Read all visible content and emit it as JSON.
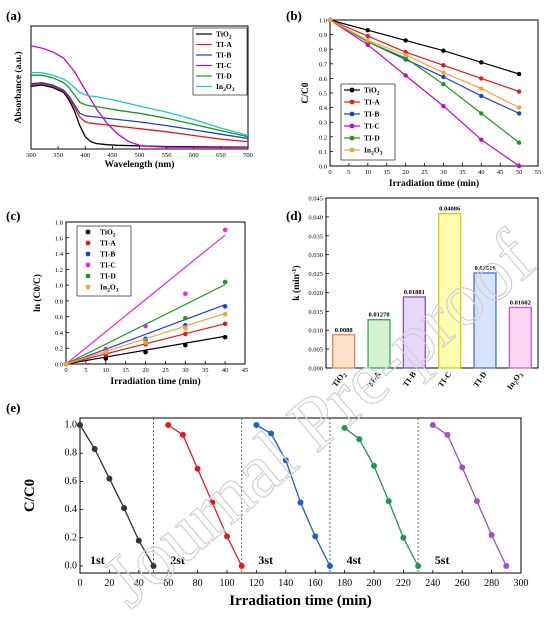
{
  "watermark": "Journal Pre-proof",
  "chart_data": [
    {
      "panel": "(a)",
      "type": "line",
      "xlabel": "Wavelength (nm)",
      "ylabel": "Absorbance (a.u.)",
      "xlim": [
        300,
        700
      ],
      "ylim": [
        0,
        1
      ],
      "xticks": [
        300,
        350,
        400,
        450,
        500,
        550,
        600,
        650,
        700
      ],
      "xtick_labels": [
        "300",
        "350",
        "400",
        "450",
        "500",
        "550",
        "600",
        "650",
        "700"
      ],
      "legend": "top-right",
      "series": [
        {
          "name": "TiO2",
          "color": "#000000",
          "x": [
            300,
            320,
            340,
            360,
            370,
            380,
            390,
            400,
            410,
            420,
            440,
            460,
            500,
            550,
            600,
            650,
            700
          ],
          "y": [
            0.51,
            0.52,
            0.5,
            0.46,
            0.4,
            0.31,
            0.19,
            0.1,
            0.06,
            0.045,
            0.035,
            0.03,
            0.025,
            0.02,
            0.018,
            0.016,
            0.015
          ]
        },
        {
          "name": "TI-A",
          "color": "#e31a1c",
          "x": [
            300,
            320,
            340,
            360,
            370,
            380,
            390,
            400,
            410,
            420,
            440,
            460,
            500,
            550,
            600,
            650,
            700
          ],
          "y": [
            0.52,
            0.53,
            0.51,
            0.47,
            0.42,
            0.34,
            0.26,
            0.22,
            0.21,
            0.205,
            0.195,
            0.185,
            0.165,
            0.14,
            0.11,
            0.08,
            0.06
          ]
        },
        {
          "name": "TI-B",
          "color": "#1f3fd1",
          "x": [
            300,
            320,
            340,
            360,
            370,
            380,
            390,
            400,
            410,
            420,
            440,
            460,
            500,
            550,
            600,
            650,
            700
          ],
          "y": [
            0.53,
            0.54,
            0.52,
            0.48,
            0.43,
            0.36,
            0.29,
            0.27,
            0.265,
            0.26,
            0.25,
            0.24,
            0.22,
            0.19,
            0.155,
            0.12,
            0.085
          ]
        },
        {
          "name": "TI-C",
          "color": "#cc00cc",
          "x": [
            300,
            320,
            340,
            360,
            380,
            400,
            420,
            440,
            460,
            480,
            500,
            520,
            550,
            600,
            650,
            700
          ],
          "y": [
            0.84,
            0.82,
            0.79,
            0.74,
            0.63,
            0.48,
            0.33,
            0.21,
            0.12,
            0.06,
            0.03,
            0.02,
            0.015,
            0.013,
            0.012,
            0.012
          ]
        },
        {
          "name": "TI-D",
          "color": "#1a9a1a",
          "x": [
            300,
            320,
            340,
            360,
            370,
            380,
            390,
            400,
            410,
            420,
            440,
            460,
            500,
            550,
            600,
            650,
            700
          ],
          "y": [
            0.6,
            0.6,
            0.58,
            0.54,
            0.5,
            0.44,
            0.38,
            0.36,
            0.35,
            0.345,
            0.33,
            0.315,
            0.29,
            0.25,
            0.2,
            0.15,
            0.1
          ]
        },
        {
          "name": "In2O3",
          "color": "#19c8c8",
          "x": [
            300,
            320,
            340,
            360,
            370,
            380,
            390,
            400,
            410,
            420,
            440,
            460,
            500,
            550,
            600,
            650,
            700
          ],
          "y": [
            0.62,
            0.62,
            0.6,
            0.57,
            0.54,
            0.5,
            0.46,
            0.44,
            0.43,
            0.425,
            0.41,
            0.39,
            0.35,
            0.3,
            0.24,
            0.17,
            0.11
          ]
        }
      ]
    },
    {
      "panel": "(b)",
      "type": "line",
      "xlabel": "Irradiation time (min)",
      "ylabel": "C/C0",
      "xlim": [
        0,
        55
      ],
      "ylim": [
        0,
        1.0
      ],
      "xticks": [
        0,
        5,
        10,
        15,
        20,
        25,
        30,
        35,
        40,
        45,
        50,
        55
      ],
      "yticks": [
        0.0,
        0.1,
        0.2,
        0.3,
        0.4,
        0.5,
        0.6,
        0.7,
        0.8,
        0.9,
        1.0
      ],
      "xtick_labels": [
        "0",
        "5",
        "10",
        "15",
        "20",
        "25",
        "30",
        "35",
        "40",
        "45",
        "50",
        "55"
      ],
      "ytick_labels": [
        "0.0",
        "0.1",
        "0.2",
        "0.3",
        "0.4",
        "0.5",
        "0.6",
        "0.7",
        "0.8",
        "0.9",
        "1.0"
      ],
      "legend": "bottom-left",
      "series": [
        {
          "name": "TiO2",
          "color": "#000000",
          "marker": "circle",
          "x": [
            0,
            10,
            20,
            30,
            40,
            50
          ],
          "y": [
            1.0,
            0.93,
            0.86,
            0.79,
            0.71,
            0.63
          ]
        },
        {
          "name": "TI-A",
          "color": "#e31a1c",
          "marker": "circle",
          "x": [
            0,
            10,
            20,
            30,
            40,
            50
          ],
          "y": [
            1.0,
            0.89,
            0.78,
            0.69,
            0.6,
            0.51
          ]
        },
        {
          "name": "TI-B",
          "color": "#1f3fd1",
          "marker": "circle",
          "x": [
            0,
            10,
            20,
            30,
            40,
            50
          ],
          "y": [
            1.0,
            0.85,
            0.73,
            0.61,
            0.48,
            0.36
          ]
        },
        {
          "name": "TI-C",
          "color": "#cc00cc",
          "marker": "circle",
          "x": [
            0,
            10,
            20,
            30,
            40,
            50
          ],
          "y": [
            1.0,
            0.83,
            0.62,
            0.41,
            0.18,
            0.0
          ]
        },
        {
          "name": "TI-D",
          "color": "#1a9a1a",
          "marker": "circle",
          "x": [
            0,
            10,
            20,
            30,
            40,
            50
          ],
          "y": [
            1.0,
            0.85,
            0.74,
            0.56,
            0.36,
            0.16
          ]
        },
        {
          "name": "In2O3",
          "color": "#f2a33a",
          "marker": "circle",
          "x": [
            0,
            10,
            20,
            30,
            40,
            50
          ],
          "y": [
            1.0,
            0.86,
            0.76,
            0.64,
            0.53,
            0.4
          ]
        }
      ]
    },
    {
      "panel": "(c)",
      "type": "scatter",
      "xlabel": "Irradiation time (min)",
      "ylabel": "ln (C0/C)",
      "xlim": [
        0,
        45
      ],
      "ylim": [
        0,
        1.8
      ],
      "xticks": [
        0,
        5,
        10,
        15,
        20,
        25,
        30,
        35,
        40,
        45
      ],
      "yticks": [
        0.0,
        0.2,
        0.4,
        0.6,
        0.8,
        1.0,
        1.2,
        1.4,
        1.6,
        1.8
      ],
      "xtick_labels": [
        "0",
        "5",
        "10",
        "15",
        "20",
        "25",
        "30",
        "35",
        "40",
        "45"
      ],
      "ytick_labels": [
        "0.0",
        "0.2",
        "0.4",
        "0.6",
        "0.8",
        "1.0",
        "1.2",
        "1.4",
        "1.6",
        "1.8"
      ],
      "legend": "top-left",
      "series": [
        {
          "name": "TiO2",
          "color": "#000000",
          "x": [
            0,
            10,
            20,
            30,
            40
          ],
          "y": [
            0,
            0.07,
            0.15,
            0.24,
            0.34
          ],
          "fit_slope": 0.0088
        },
        {
          "name": "TI-A",
          "color": "#e31a1c",
          "x": [
            0,
            10,
            20,
            30,
            40
          ],
          "y": [
            0,
            0.12,
            0.25,
            0.38,
            0.51
          ],
          "fit_slope": 0.01278
        },
        {
          "name": "TI-B",
          "color": "#1f3fd1",
          "x": [
            0,
            10,
            20,
            30,
            40
          ],
          "y": [
            0,
            0.16,
            0.32,
            0.49,
            0.73
          ],
          "fit_slope": 0.01881
        },
        {
          "name": "TI-C",
          "color": "#ee22ee",
          "x": [
            0,
            10,
            20,
            30,
            40
          ],
          "y": [
            0,
            0.19,
            0.48,
            0.89,
            1.7
          ],
          "fit_slope": 0.04086
        },
        {
          "name": "TI-D",
          "color": "#1a9a1a",
          "x": [
            0,
            10,
            20,
            30,
            40
          ],
          "y": [
            0,
            0.16,
            0.3,
            0.58,
            1.04
          ],
          "fit_slope": 0.02516
        },
        {
          "name": "In2O3",
          "color": "#f2a33a",
          "x": [
            0,
            10,
            20,
            30,
            40
          ],
          "y": [
            0,
            0.15,
            0.27,
            0.45,
            0.63
          ],
          "fit_slope": 0.01602
        }
      ]
    },
    {
      "panel": "(d)",
      "type": "bar",
      "xlabel": "",
      "ylabel": "k (min-1)",
      "ylim": [
        0,
        0.045
      ],
      "yticks": [
        0.0,
        0.005,
        0.01,
        0.015,
        0.02,
        0.025,
        0.03,
        0.035,
        0.04,
        0.045
      ],
      "ytick_labels": [
        "0.000",
        "0.005",
        "0.010",
        "0.015",
        "0.020",
        "0.025",
        "0.030",
        "0.035",
        "0.040",
        "0.045"
      ],
      "categories": [
        "TiO2",
        "TI-A",
        "TI-B",
        "TI-C",
        "TI-D",
        "In2O3"
      ],
      "values": [
        0.0088,
        0.01278,
        0.01881,
        0.04086,
        0.02516,
        0.01602
      ],
      "value_labels": [
        "0.0088",
        "0.01278",
        "0.01881",
        "0.04086",
        "0.02516",
        "0.01602"
      ],
      "colors": [
        "#e8804a",
        "#3aa84a",
        "#8a4fc8",
        "#e0c800",
        "#4a6ed8",
        "#e050c8"
      ],
      "fills": [
        "#fde3cc",
        "#d2f2d2",
        "#e6d8f6",
        "#fffbb0",
        "#d8e4fb",
        "#fbd8f3"
      ]
    },
    {
      "panel": "(e)",
      "type": "line",
      "xlabel": "Irradiation time (min)",
      "ylabel": "C/C0",
      "xlim": [
        0,
        300
      ],
      "ylim": [
        -0.05,
        1.05
      ],
      "xticks": [
        0,
        20,
        40,
        60,
        80,
        100,
        120,
        140,
        160,
        180,
        200,
        220,
        240,
        260,
        280,
        300
      ],
      "yticks": [
        0.0,
        0.2,
        0.4,
        0.6,
        0.8,
        1.0
      ],
      "xtick_labels": [
        "0",
        "20",
        "40",
        "60",
        "80",
        "100",
        "120",
        "140",
        "160",
        "180",
        "200",
        "220",
        "240",
        "260",
        "280",
        "300"
      ],
      "ytick_labels": [
        "0.0",
        "0.2",
        "0.4",
        "0.6",
        "0.8",
        "1.0"
      ],
      "cycle_dividers": [
        50,
        110,
        170,
        230
      ],
      "series": [
        {
          "name": "1st",
          "color": "#333333",
          "x": [
            0,
            10,
            20,
            30,
            40,
            50
          ],
          "y": [
            1.0,
            0.83,
            0.62,
            0.41,
            0.18,
            0.0
          ]
        },
        {
          "name": "2nd",
          "color": "#e31a1c",
          "x": [
            60,
            70,
            80,
            90,
            100,
            110
          ],
          "y": [
            1.0,
            0.93,
            0.69,
            0.45,
            0.21,
            0.0
          ]
        },
        {
          "name": "3rd",
          "color": "#1a5fd1",
          "x": [
            120,
            130,
            140,
            150,
            160,
            170
          ],
          "y": [
            1.0,
            0.94,
            0.75,
            0.45,
            0.21,
            0.0
          ]
        },
        {
          "name": "4th",
          "color": "#1a9a4a",
          "x": [
            180,
            190,
            200,
            210,
            220,
            230
          ],
          "y": [
            0.98,
            0.9,
            0.71,
            0.46,
            0.2,
            0.0
          ]
        },
        {
          "name": "5th",
          "color": "#a050c8",
          "x": [
            240,
            250,
            260,
            270,
            280,
            290
          ],
          "y": [
            1.0,
            0.93,
            0.7,
            0.46,
            0.22,
            0.0
          ]
        }
      ],
      "cycle_labels": [
        "1st",
        "2st",
        "3st",
        "4st",
        "5st"
      ]
    }
  ]
}
